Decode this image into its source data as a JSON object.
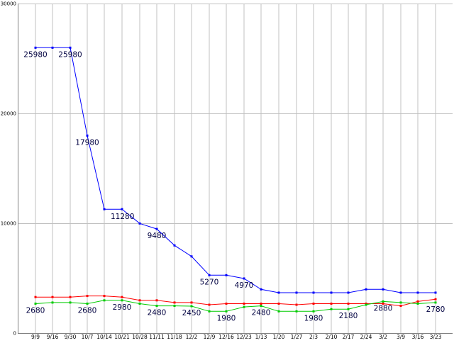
{
  "chart_data": {
    "type": "line",
    "x": [
      "9/9",
      "9/16",
      "9/30",
      "10/7",
      "10/14",
      "10/21",
      "10/28",
      "11/11",
      "11/18",
      "12/2",
      "12/9",
      "12/16",
      "12/23",
      "1/13",
      "1/20",
      "1/27",
      "2/3",
      "2/10",
      "2/17",
      "2/24",
      "3/2",
      "3/9",
      "3/16",
      "3/23"
    ],
    "ylim": [
      0,
      30000
    ],
    "yticks": [
      "0",
      "10000",
      "20000",
      "30000"
    ],
    "grid": true,
    "series": [
      {
        "color": "#0000ff",
        "values": [
          25980,
          25980,
          25980,
          17980,
          11280,
          11280,
          9980,
          9480,
          7980,
          6980,
          5270,
          5270,
          4970,
          3980,
          3680,
          3680,
          3680,
          3680,
          3680,
          3980,
          3980,
          3680,
          3680,
          3680
        ]
      },
      {
        "color": "#ff0000",
        "values": [
          3280,
          3280,
          3280,
          3380,
          3380,
          3280,
          2980,
          2980,
          2780,
          2780,
          2580,
          2680,
          2680,
          2680,
          2680,
          2580,
          2680,
          2680,
          2680,
          2680,
          2680,
          2480,
          2880,
          3080
        ]
      },
      {
        "color": "#00cc00",
        "values": [
          2680,
          2780,
          2780,
          2680,
          2980,
          2980,
          2680,
          2480,
          2480,
          2450,
          1980,
          1980,
          2380,
          2480,
          1980,
          1980,
          1980,
          2180,
          2180,
          2580,
          2880,
          2780,
          2680,
          2780
        ]
      }
    ],
    "annotations": [
      {
        "series": 0,
        "index": 0,
        "text": "25980",
        "pos": "below"
      },
      {
        "series": 0,
        "index": 2,
        "text": "25980",
        "pos": "below"
      },
      {
        "series": 0,
        "index": 3,
        "text": "17980",
        "pos": "below"
      },
      {
        "series": 0,
        "index": 4,
        "text": "11280",
        "pos": "below-right"
      },
      {
        "series": 0,
        "index": 7,
        "text": "9480",
        "pos": "below"
      },
      {
        "series": 0,
        "index": 10,
        "text": "5270",
        "pos": "below"
      },
      {
        "series": 0,
        "index": 12,
        "text": "4970",
        "pos": "below"
      },
      {
        "series": 2,
        "index": 0,
        "text": "2680",
        "pos": "below"
      },
      {
        "series": 2,
        "index": 3,
        "text": "2680",
        "pos": "below"
      },
      {
        "series": 2,
        "index": 5,
        "text": "2980",
        "pos": "below"
      },
      {
        "series": 2,
        "index": 7,
        "text": "2480",
        "pos": "below"
      },
      {
        "series": 2,
        "index": 9,
        "text": "2450",
        "pos": "below"
      },
      {
        "series": 2,
        "index": 11,
        "text": "1980",
        "pos": "below"
      },
      {
        "series": 2,
        "index": 13,
        "text": "2480",
        "pos": "below"
      },
      {
        "series": 2,
        "index": 16,
        "text": "1980",
        "pos": "below"
      },
      {
        "series": 2,
        "index": 18,
        "text": "2180",
        "pos": "below"
      },
      {
        "series": 2,
        "index": 20,
        "text": "2880",
        "pos": "below"
      },
      {
        "series": 2,
        "index": 23,
        "text": "2780",
        "pos": "below"
      }
    ]
  }
}
